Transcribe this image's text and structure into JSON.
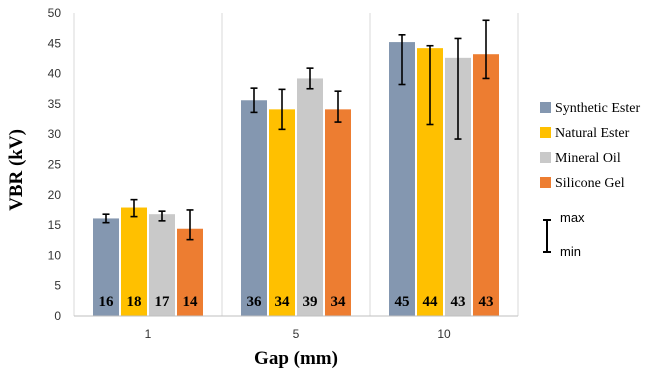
{
  "chart_data": {
    "type": "bar",
    "xlabel": "Gap (mm)",
    "ylabel": "VBR (kV)",
    "categories": [
      "1",
      "5",
      "10"
    ],
    "ylim": [
      0,
      50
    ],
    "yticks": [
      0,
      5,
      10,
      15,
      20,
      25,
      30,
      35,
      40,
      45,
      50
    ],
    "grid": "vertical category separators only",
    "legend_position": "right",
    "series": [
      {
        "name": "Synthetic Ester",
        "color": "#8497B0",
        "values": [
          16.1,
          35.6,
          45.2
        ],
        "max": [
          16.8,
          37.6,
          46.4
        ],
        "min": [
          15.4,
          33.6,
          38.2
        ],
        "labels": [
          "16",
          "36",
          "45"
        ]
      },
      {
        "name": "Natural Ester",
        "color": "#FFC000",
        "values": [
          17.9,
          34.1,
          44.2
        ],
        "max": [
          19.2,
          37.4,
          44.6
        ],
        "min": [
          16.4,
          30.8,
          31.6
        ],
        "labels": [
          "18",
          "34",
          "44"
        ]
      },
      {
        "name": "Mineral Oil",
        "color": "#C9C9C9",
        "values": [
          16.8,
          39.2,
          42.6
        ],
        "max": [
          17.3,
          40.9,
          45.8
        ],
        "min": [
          15.7,
          37.5,
          29.2
        ],
        "labels": [
          "17",
          "39",
          "43"
        ]
      },
      {
        "name": "Silicone Gel",
        "color": "#ED7D31",
        "values": [
          14.4,
          34.1,
          43.2
        ],
        "max": [
          17.5,
          37.1,
          48.8
        ],
        "min": [
          12.6,
          32.0,
          39.2
        ],
        "labels": [
          "14",
          "34",
          "43"
        ]
      }
    ],
    "errorbar_key": {
      "max_label": "max",
      "min_label": "min"
    }
  }
}
